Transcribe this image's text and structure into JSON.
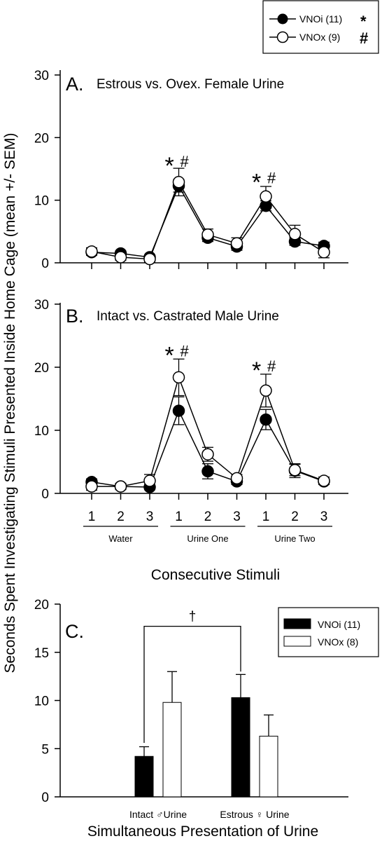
{
  "figure": {
    "ylabel": "Seconds Spent Investigating Stimuli Presented Inside Home Cage (mean +/- SEM)",
    "top_legend": [
      {
        "label": "VNOi (11)",
        "mark": "*",
        "marker": "filled-circle"
      },
      {
        "label": "VNOx (9)",
        "mark": "#",
        "marker": "open-circle"
      }
    ],
    "stimulus_numbers": [
      "1",
      "2",
      "3",
      "1",
      "2",
      "3",
      "1",
      "2",
      "3"
    ],
    "stimulus_groups": [
      "Water",
      "Urine One",
      "Urine Two"
    ],
    "xlabel_lines": "Consecutive Stimuli",
    "xlabel_bars": "Simultaneous Presentation of Urine",
    "colors": {
      "filled": "#000000",
      "open": "#ffffff",
      "line": "#000000"
    }
  },
  "chart_data": [
    {
      "type": "line",
      "panel": "A.",
      "title": "Estrous vs. Ovex. Female Urine",
      "x": [
        1,
        2,
        3,
        4,
        5,
        6,
        7,
        8,
        9
      ],
      "ylim": [
        0,
        30
      ],
      "yticks": [
        0,
        10,
        20,
        30
      ],
      "series": [
        {
          "name": "VNOi (11)",
          "marker": "filled",
          "values": [
            1.7,
            1.5,
            0.9,
            12.3,
            4.0,
            2.6,
            9.1,
            3.4,
            2.7
          ],
          "sem": [
            0.5,
            0.4,
            0.3,
            1.0,
            0.6,
            0.6,
            0.8,
            0.6,
            0.6
          ]
        },
        {
          "name": "VNOx (9)",
          "marker": "open",
          "values": [
            1.8,
            0.9,
            0.6,
            12.9,
            4.5,
            3.1,
            10.6,
            4.6,
            1.7
          ],
          "sem": [
            0.6,
            0.5,
            0.5,
            2.2,
            0.9,
            0.9,
            1.6,
            1.4,
            0.9
          ]
        }
      ],
      "annotations": [
        {
          "x": 4,
          "y": 16.0,
          "star": "*",
          "hash": "#"
        },
        {
          "x": 7,
          "y": 13.4,
          "star": "*",
          "hash": "#"
        }
      ]
    },
    {
      "type": "line",
      "panel": "B.",
      "title": "Intact vs. Castrated Male Urine",
      "x": [
        1,
        2,
        3,
        4,
        5,
        6,
        7,
        8,
        9
      ],
      "ylim": [
        0,
        30
      ],
      "yticks": [
        0,
        10,
        20,
        30
      ],
      "series": [
        {
          "name": "VNOi (11)",
          "marker": "filled",
          "values": [
            1.8,
            1.1,
            1.0,
            13.1,
            3.5,
            1.9,
            11.7,
            3.6,
            1.9
          ],
          "sem": [
            0.5,
            0.4,
            0.4,
            2.2,
            1.2,
            0.5,
            1.6,
            1.1,
            0.5
          ]
        },
        {
          "name": "VNOx (9)",
          "marker": "open",
          "values": [
            1.1,
            1.1,
            2.0,
            18.4,
            6.2,
            2.4,
            16.3,
            3.7,
            2.0
          ],
          "sem": [
            0.6,
            0.5,
            1.0,
            2.9,
            1.1,
            0.6,
            2.6,
            0.9,
            0.6
          ]
        }
      ],
      "annotations": [
        {
          "x": 4,
          "y": 22.4,
          "star": "*",
          "hash": "#"
        },
        {
          "x": 7,
          "y": 20.0,
          "star": "*",
          "hash": "#"
        }
      ]
    },
    {
      "type": "bar",
      "panel": "C.",
      "title": "",
      "categories": [
        "Intact ♂Urine",
        "Estrous ♀ Urine"
      ],
      "ylim": [
        0,
        20
      ],
      "yticks": [
        0,
        5,
        10,
        15,
        20
      ],
      "series": [
        {
          "name": "VNOi (11)",
          "fill": "filled",
          "values": [
            4.2,
            10.3
          ],
          "sem": [
            1.0,
            2.4
          ]
        },
        {
          "name": "VNOx (8)",
          "fill": "open",
          "values": [
            9.8,
            6.3
          ],
          "sem": [
            3.2,
            2.2
          ]
        }
      ],
      "bracket": {
        "label": "†",
        "y": 17.7
      }
    }
  ]
}
